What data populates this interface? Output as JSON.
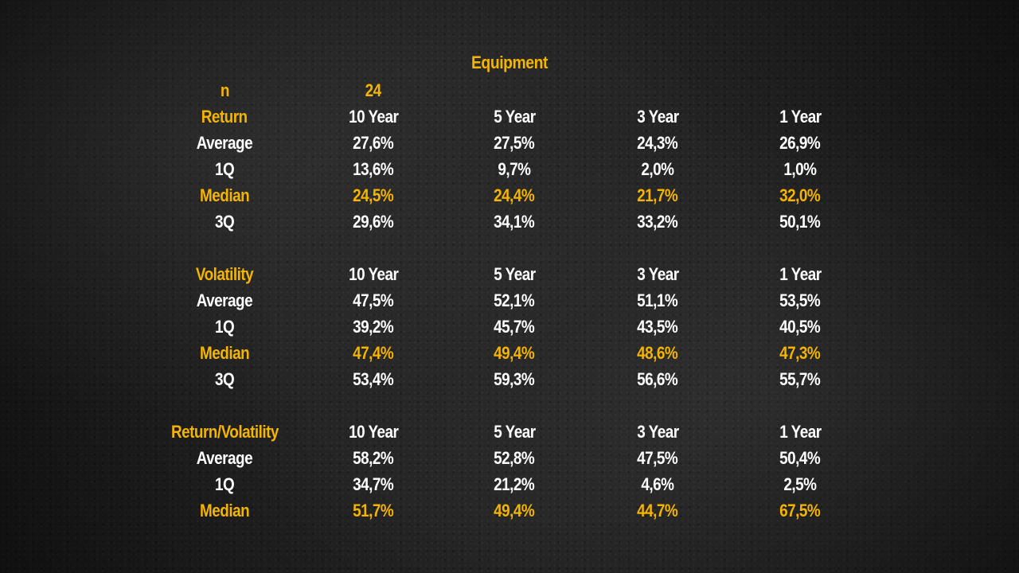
{
  "title": "Equipment",
  "n": {
    "label": "n",
    "value": "24"
  },
  "sections": [
    {
      "header": "Return",
      "columns": [
        "10 Year",
        "5 Year",
        "3 Year",
        "1 Year"
      ],
      "rows": [
        {
          "label": "Average",
          "values": [
            "27,6%",
            "27,5%",
            "24,3%",
            "26,9%"
          ]
        },
        {
          "label": "1Q",
          "values": [
            "13,6%",
            "9,7%",
            "2,0%",
            "1,0%"
          ]
        },
        {
          "label": "Median",
          "values": [
            "24,5%",
            "24,4%",
            "21,7%",
            "32,0%"
          ]
        },
        {
          "label": "3Q",
          "values": [
            "29,6%",
            "34,1%",
            "33,2%",
            "50,1%"
          ]
        }
      ]
    },
    {
      "header": "Volatility",
      "columns": [
        "10 Year",
        "5 Year",
        "3 Year",
        "1 Year"
      ],
      "rows": [
        {
          "label": "Average",
          "values": [
            "47,5%",
            "52,1%",
            "51,1%",
            "53,5%"
          ]
        },
        {
          "label": "1Q",
          "values": [
            "39,2%",
            "45,7%",
            "43,5%",
            "40,5%"
          ]
        },
        {
          "label": "Median",
          "values": [
            "47,4%",
            "49,4%",
            "48,6%",
            "47,3%"
          ]
        },
        {
          "label": "3Q",
          "values": [
            "53,4%",
            "59,3%",
            "56,6%",
            "55,7%"
          ]
        }
      ]
    },
    {
      "header": "Return/Volatility",
      "columns": [
        "10 Year",
        "5 Year",
        "3 Year",
        "1 Year"
      ],
      "rows": [
        {
          "label": "Average",
          "values": [
            "58,2%",
            "52,8%",
            "47,5%",
            "50,4%"
          ]
        },
        {
          "label": "1Q",
          "values": [
            "34,7%",
            "21,2%",
            "4,6%",
            "2,5%"
          ]
        },
        {
          "label": "Median",
          "values": [
            "51,7%",
            "49,4%",
            "44,7%",
            "67,5%"
          ]
        }
      ]
    }
  ],
  "colors": {
    "accent": "#f5b400",
    "text": "#ffffff",
    "background": "#232323"
  }
}
